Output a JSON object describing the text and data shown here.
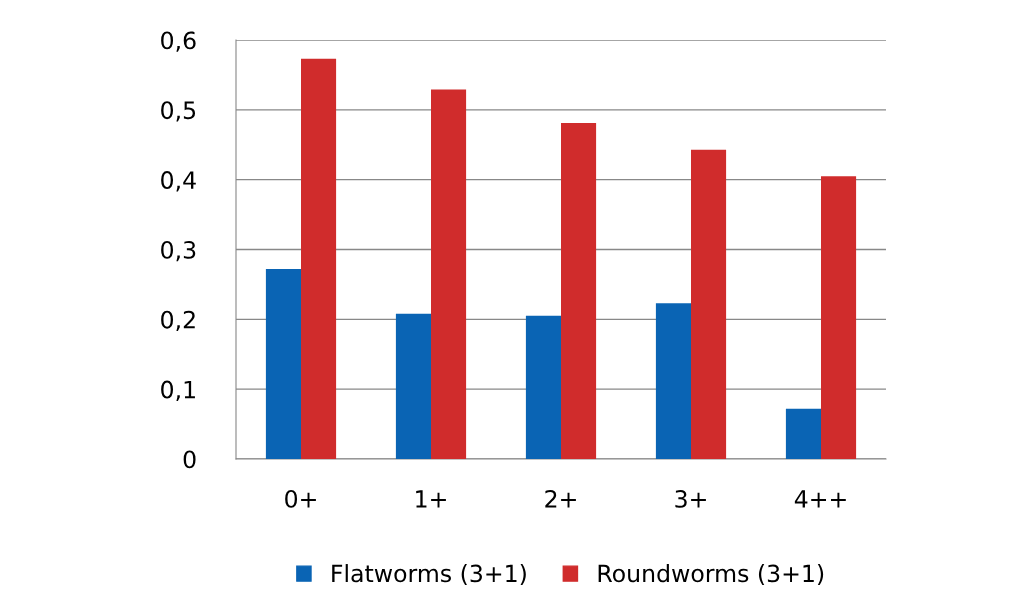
{
  "chart_data": {
    "type": "bar",
    "categories": [
      "0+",
      "1+",
      "2+",
      "3+",
      "4++"
    ],
    "series": [
      {
        "name": "Flatworms (3+1)",
        "color": "#0a64b4",
        "values": [
          0.272,
          0.208,
          0.205,
          0.223,
          0.072
        ]
      },
      {
        "name": "Roundworms (3+1)",
        "color": "#d02c2c",
        "values": [
          0.573,
          0.529,
          0.481,
          0.443,
          0.405
        ]
      }
    ],
    "ylim": [
      0,
      0.6
    ],
    "yticks": [
      {
        "value": 0,
        "label": "0"
      },
      {
        "value": 0.1,
        "label": "0,1"
      },
      {
        "value": 0.2,
        "label": "0,2"
      },
      {
        "value": 0.3,
        "label": "0,3"
      },
      {
        "value": 0.4,
        "label": "0,4"
      },
      {
        "value": 0.5,
        "label": "0,5"
      },
      {
        "value": 0.6,
        "label": "0,6"
      }
    ],
    "grid": "y",
    "legend": "bottom"
  }
}
